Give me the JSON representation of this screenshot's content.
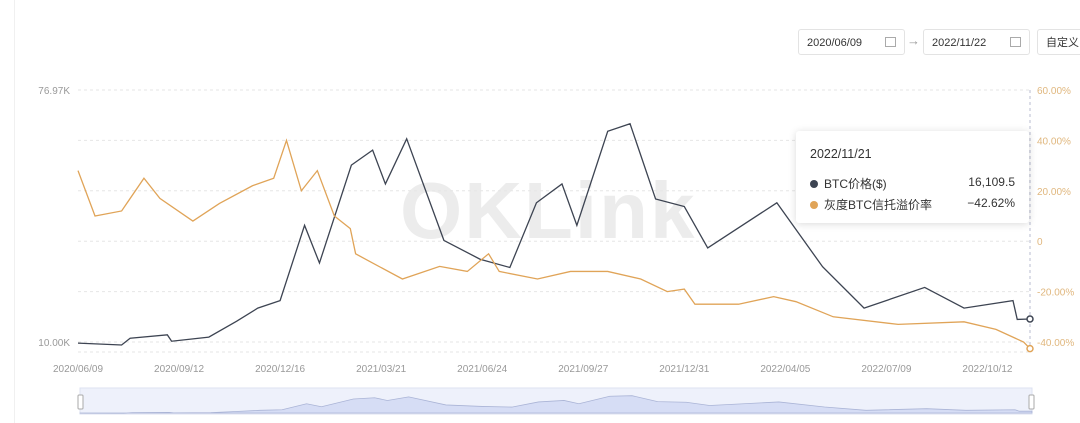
{
  "controls": {
    "start_date": "2020/06/09",
    "end_date": "2022/11/22",
    "custom_label": "自定义",
    "arrow": "→"
  },
  "watermark": "OKLink",
  "tooltip": {
    "date": "2022/11/21",
    "rows": [
      {
        "label": "BTC价格($)",
        "value": "16,109.5",
        "color": "#3d4452"
      },
      {
        "label": "灰度BTC信托溢价率",
        "value": "−42.62%",
        "color": "#e0a458"
      }
    ]
  },
  "chart_data": {
    "type": "line",
    "x_ticks": [
      "2020/06/09",
      "2020/09/12",
      "2020/12/16",
      "2021/03/21",
      "2021/06/24",
      "2021/09/27",
      "2021/12/31",
      "2022/04/05",
      "2022/07/09",
      "2022/10/12"
    ],
    "xlim": [
      "2020/06/09",
      "2022/11/21"
    ],
    "y_left": {
      "ticks": [
        "76.97K",
        "10.00K"
      ],
      "range": [
        10000,
        76970
      ]
    },
    "y_right": {
      "ticks": [
        "60.00%",
        "40.00%",
        "20.00%",
        "0",
        "-20.00%",
        "-40.00%"
      ],
      "range": [
        -40,
        60
      ]
    },
    "grid": true,
    "series": [
      {
        "name": "BTC价格($)",
        "axis": "left",
        "color": "#3d4452",
        "points": [
          [
            "2020-06-09",
            9700
          ],
          [
            "2020-07-20",
            9200
          ],
          [
            "2020-07-28",
            11000
          ],
          [
            "2020-09-01",
            11900
          ],
          [
            "2020-09-05",
            10200
          ],
          [
            "2020-10-10",
            11300
          ],
          [
            "2020-11-05",
            15500
          ],
          [
            "2020-11-25",
            19000
          ],
          [
            "2020-12-16",
            21000
          ],
          [
            "2021-01-08",
            41000
          ],
          [
            "2021-01-22",
            31000
          ],
          [
            "2021-02-21",
            57000
          ],
          [
            "2021-03-13",
            61000
          ],
          [
            "2021-03-25",
            52000
          ],
          [
            "2021-04-14",
            64000
          ],
          [
            "2021-05-19",
            37000
          ],
          [
            "2021-06-22",
            32000
          ],
          [
            "2021-07-20",
            29800
          ],
          [
            "2021-08-14",
            47000
          ],
          [
            "2021-09-07",
            52000
          ],
          [
            "2021-09-21",
            41000
          ],
          [
            "2021-10-20",
            66000
          ],
          [
            "2021-11-10",
            68000
          ],
          [
            "2021-12-04",
            48000
          ],
          [
            "2021-12-31",
            46000
          ],
          [
            "2022-01-22",
            35000
          ],
          [
            "2022-03-28",
            47000
          ],
          [
            "2022-05-10",
            30000
          ],
          [
            "2022-06-18",
            19000
          ],
          [
            "2022-08-14",
            24500
          ],
          [
            "2022-09-20",
            19000
          ],
          [
            "2022-11-05",
            21000
          ],
          [
            "2022-11-09",
            16000
          ],
          [
            "2022-11-21",
            16109.5
          ]
        ]
      },
      {
        "name": "灰度BTC信托溢价率",
        "axis": "right",
        "color": "#e0a458",
        "points": [
          [
            "2020-06-09",
            28
          ],
          [
            "2020-06-25",
            10
          ],
          [
            "2020-07-20",
            12
          ],
          [
            "2020-08-10",
            25
          ],
          [
            "2020-08-25",
            17
          ],
          [
            "2020-09-25",
            8
          ],
          [
            "2020-10-20",
            15
          ],
          [
            "2020-11-20",
            22
          ],
          [
            "2020-12-10",
            25
          ],
          [
            "2020-12-22",
            40
          ],
          [
            "2021-01-05",
            20
          ],
          [
            "2021-01-20",
            28
          ],
          [
            "2021-02-05",
            10
          ],
          [
            "2021-02-20",
            5
          ],
          [
            "2021-02-25",
            -5
          ],
          [
            "2021-03-10",
            -8
          ],
          [
            "2021-04-10",
            -15
          ],
          [
            "2021-05-15",
            -10
          ],
          [
            "2021-06-10",
            -12
          ],
          [
            "2021-06-30",
            -5
          ],
          [
            "2021-07-10",
            -12
          ],
          [
            "2021-08-15",
            -15
          ],
          [
            "2021-09-15",
            -12
          ],
          [
            "2021-10-20",
            -12
          ],
          [
            "2021-11-20",
            -15
          ],
          [
            "2021-12-15",
            -20
          ],
          [
            "2021-12-31",
            -19
          ],
          [
            "2022-01-10",
            -25
          ],
          [
            "2022-02-20",
            -25
          ],
          [
            "2022-03-25",
            -22
          ],
          [
            "2022-04-15",
            -24
          ],
          [
            "2022-05-20",
            -30
          ],
          [
            "2022-07-20",
            -33
          ],
          [
            "2022-09-20",
            -32
          ],
          [
            "2022-10-20",
            -35
          ],
          [
            "2022-11-15",
            -40
          ],
          [
            "2022-11-21",
            -42.62
          ]
        ]
      }
    ]
  }
}
